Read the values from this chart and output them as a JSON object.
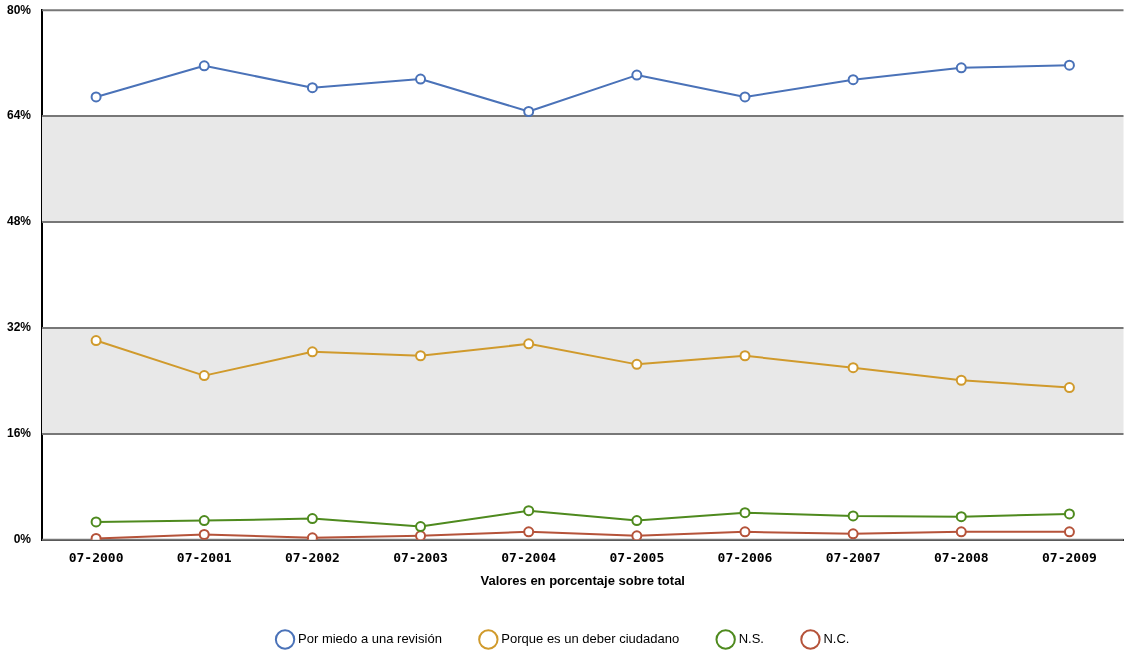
{
  "chart_data": {
    "type": "line",
    "xlabel": "Valores en porcentaje sobre total",
    "categories": [
      "07-2000",
      "07-2001",
      "07-2002",
      "07-2003",
      "07-2004",
      "07-2005",
      "07-2006",
      "07-2007",
      "07-2008",
      "07-2009"
    ],
    "series": [
      {
        "name": "Por miedo a una revisión",
        "color": "#4a72b8",
        "values": [
          66.9,
          71.6,
          68.3,
          69.6,
          64.7,
          70.2,
          66.9,
          69.5,
          71.3,
          71.7
        ]
      },
      {
        "name": "Porque es un deber ciudadano",
        "color": "#d09a2c",
        "values": [
          30.1,
          24.8,
          28.4,
          27.8,
          29.6,
          26.5,
          27.8,
          26.0,
          24.1,
          23.0
        ]
      },
      {
        "name": "N.S.",
        "color": "#4e8a1e",
        "values": [
          2.7,
          2.9,
          3.2,
          2.0,
          4.4,
          2.9,
          4.1,
          3.6,
          3.5,
          3.9
        ]
      },
      {
        "name": "N.C.",
        "color": "#b5533a",
        "values": [
          0.2,
          0.8,
          0.3,
          0.6,
          1.2,
          0.6,
          1.2,
          0.9,
          1.2,
          1.2
        ]
      }
    ],
    "ylim": [
      0,
      80
    ],
    "yticks": [
      {
        "value": 0,
        "label": "0%"
      },
      {
        "value": 16,
        "label": "16%"
      },
      {
        "value": 32,
        "label": "32%"
      },
      {
        "value": 48,
        "label": "48%"
      },
      {
        "value": 64,
        "label": "64%"
      },
      {
        "value": 80,
        "label": "80%"
      }
    ],
    "bands": [
      {
        "axis": "y",
        "from": 16,
        "to": 32,
        "color": "#e8e8e8"
      },
      {
        "axis": "y",
        "from": 48,
        "to": 64,
        "color": "#e8e8e8"
      }
    ],
    "grid": "y",
    "legend": "bottom",
    "marker": "circle",
    "line_style": "solid"
  }
}
